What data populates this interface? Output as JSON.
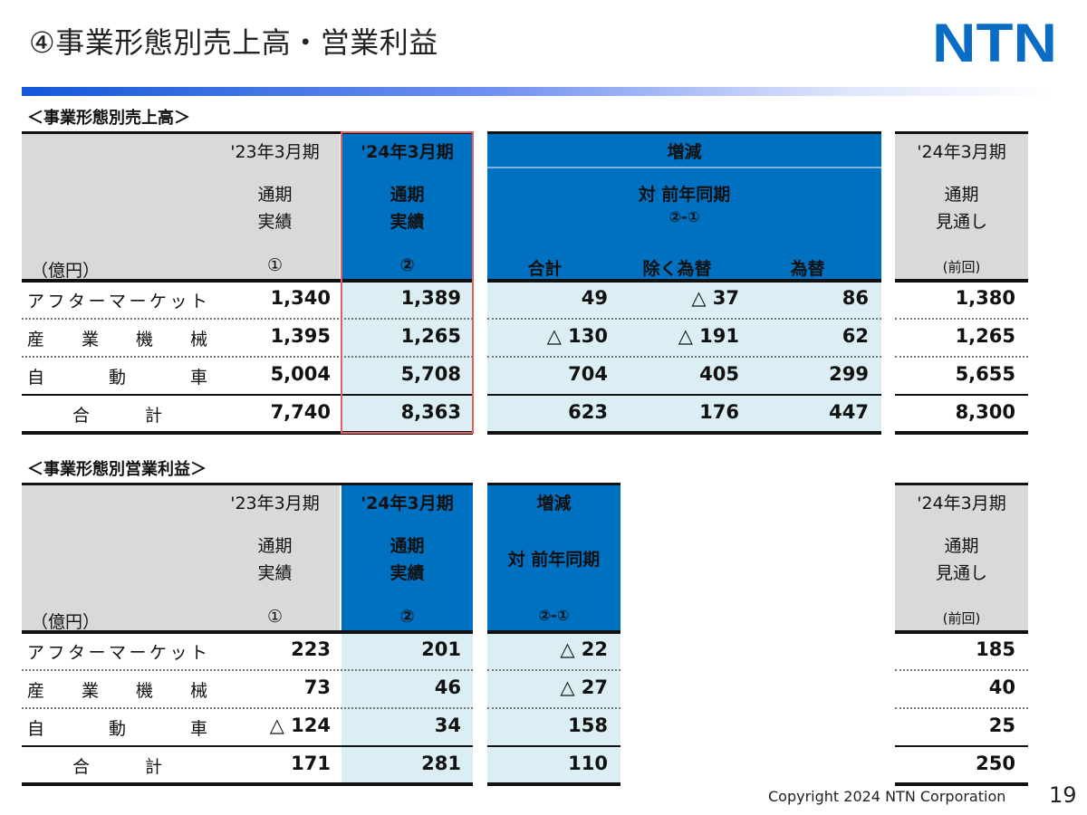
{
  "title": "④事業形態別売上高・営業利益",
  "logo_text": "NTN",
  "colors": {
    "header_blue": "#0070c0",
    "header_gray": "#d9d9d9",
    "body_light_blue": "#daeef3",
    "highlight_border": "#e06060",
    "logo_blue": "#0a6cc4"
  },
  "sales_table": {
    "section_label": "＜事業形態別売上高＞",
    "unit": "（億円）",
    "col_prev": {
      "period": "'23年3月期",
      "line1": "通期",
      "line2": "実績",
      "mark": "①"
    },
    "col_curr": {
      "period": "'24年3月期",
      "line1": "通期",
      "line2": "実績",
      "mark": "②"
    },
    "col_diff": {
      "title": "増減",
      "line1": "対 前年同期",
      "line2": "②-①",
      "sub": [
        "合計",
        "除く為替",
        "為替"
      ]
    },
    "col_forecast": {
      "period": "'24年3月期",
      "line1": "通期",
      "line2": "見通し",
      "mark": "(前回)"
    },
    "highlighted_column": "col_curr",
    "rows": [
      {
        "label": "アフターマーケット",
        "prev": "1,340",
        "curr": "1,389",
        "diff": [
          "49",
          "△ 37",
          "86"
        ],
        "forecast": "1,380"
      },
      {
        "label": "産業機械",
        "prev": "1,395",
        "curr": "1,265",
        "diff": [
          "△ 130",
          "△ 191",
          "62"
        ],
        "forecast": "1,265"
      },
      {
        "label": "自動車",
        "prev": "5,004",
        "curr": "5,708",
        "diff": [
          "704",
          "405",
          "299"
        ],
        "forecast": "5,655"
      },
      {
        "label": "合計",
        "prev": "7,740",
        "curr": "8,363",
        "diff": [
          "623",
          "176",
          "447"
        ],
        "forecast": "8,300"
      }
    ]
  },
  "profit_table": {
    "section_label": "＜事業形態別営業利益＞",
    "unit": "（億円）",
    "col_prev": {
      "period": "'23年3月期",
      "line1": "通期",
      "line2": "実績",
      "mark": "①"
    },
    "col_curr": {
      "period": "'24年3月期",
      "line1": "通期",
      "line2": "実績",
      "mark": "②"
    },
    "col_diff": {
      "title": "増減",
      "line1": "対 前年同期",
      "line2": "②-①"
    },
    "col_forecast": {
      "period": "'24年3月期",
      "line1": "通期",
      "line2": "見通し",
      "mark": "(前回)"
    },
    "rows": [
      {
        "label": "アフターマーケット",
        "prev": "223",
        "curr": "201",
        "diff": [
          "△ 22"
        ],
        "forecast": "185"
      },
      {
        "label": "産業機械",
        "prev": "73",
        "curr": "46",
        "diff": [
          "△ 27"
        ],
        "forecast": "40"
      },
      {
        "label": "自動車",
        "prev": "△ 124",
        "curr": "34",
        "diff": [
          "158"
        ],
        "forecast": "25"
      },
      {
        "label": "合計",
        "prev": "171",
        "curr": "281",
        "diff": [
          "110"
        ],
        "forecast": "250"
      }
    ]
  },
  "footer": {
    "copyright": "Copyright 2024 NTN Corporation",
    "page_number": "19"
  }
}
